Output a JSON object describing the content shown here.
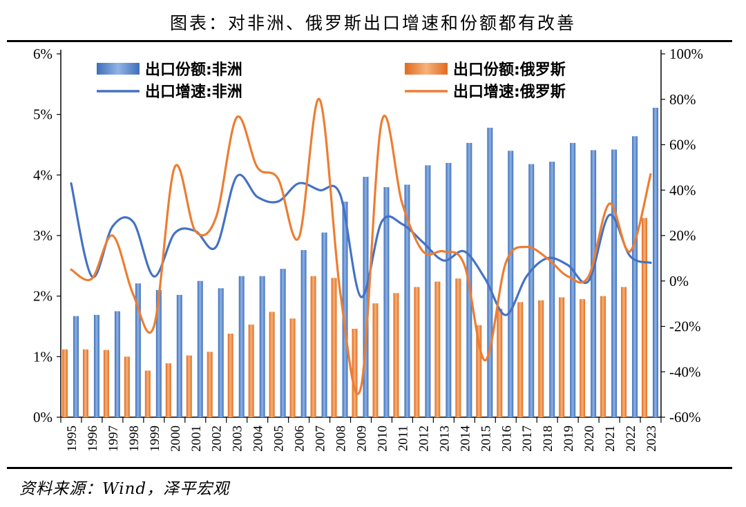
{
  "header": {
    "title": "图表：对非洲、俄罗斯出口增速和份额都有改善"
  },
  "footer": {
    "source": "资料来源：Wind，泽平宏观"
  },
  "colors": {
    "blue": "#4472c4",
    "orange": "#ed7d31",
    "axis": "#000000"
  },
  "chart_data": {
    "type": "bar",
    "categories": [
      "1995",
      "1996",
      "1997",
      "1998",
      "1999",
      "2000",
      "2001",
      "2002",
      "2003",
      "2004",
      "2005",
      "2006",
      "2007",
      "2008",
      "2009",
      "2010",
      "2011",
      "2012",
      "2013",
      "2014",
      "2015",
      "2016",
      "2017",
      "2018",
      "2019",
      "2020",
      "2021",
      "2022",
      "2023"
    ],
    "left_axis": {
      "ylim": [
        0,
        6
      ],
      "ticks": [
        "0%",
        "1%",
        "2%",
        "3%",
        "4%",
        "5%",
        "6%"
      ]
    },
    "right_axis": {
      "ylim": [
        -60,
        100
      ],
      "ticks": [
        "-60%",
        "-40%",
        "-20%",
        "0%",
        "20%",
        "40%",
        "60%",
        "80%",
        "100%"
      ]
    },
    "legend": {
      "share_africa": "出口份额:非洲",
      "share_russia": "出口份额:俄罗斯",
      "growth_africa": "出口增速:非洲",
      "growth_russia": "出口增速:俄罗斯"
    },
    "series": [
      {
        "name": "出口份额:非洲",
        "type": "bar",
        "axis": "left",
        "color": "#4472c4",
        "values": [
          1.67,
          1.69,
          1.75,
          2.21,
          2.1,
          2.02,
          2.25,
          2.13,
          2.33,
          2.33,
          2.45,
          2.76,
          3.05,
          3.56,
          3.97,
          3.8,
          3.84,
          4.16,
          4.2,
          4.53,
          4.78,
          4.4,
          4.18,
          4.22,
          4.53,
          4.41,
          4.42,
          4.64,
          5.11
        ]
      },
      {
        "name": "出口份额:俄罗斯",
        "type": "bar",
        "axis": "left",
        "color": "#ed7d31",
        "values": [
          1.12,
          1.12,
          1.11,
          1.0,
          0.77,
          0.89,
          1.02,
          1.08,
          1.38,
          1.53,
          1.74,
          1.63,
          2.33,
          2.3,
          1.46,
          1.88,
          2.05,
          2.15,
          2.24,
          2.29,
          1.52,
          1.79,
          1.9,
          1.93,
          1.98,
          1.95,
          2.0,
          2.15,
          3.29
        ]
      },
      {
        "name": "出口增速:非洲",
        "type": "line",
        "axis": "right",
        "color": "#4472c4",
        "values": [
          43,
          2,
          24,
          26,
          2,
          21,
          22,
          15,
          46,
          37,
          35,
          43,
          40,
          38,
          -7,
          26,
          25,
          17,
          9,
          13,
          1,
          -15,
          2,
          10,
          7,
          0,
          29,
          11,
          8
        ]
      },
      {
        "name": "出口增速:俄罗斯",
        "type": "line",
        "axis": "right",
        "color": "#ed7d31",
        "values": [
          5,
          1,
          20,
          -6,
          -20,
          50,
          22,
          28,
          72,
          50,
          45,
          19,
          80,
          -5,
          -47,
          70,
          34,
          13,
          13,
          7,
          -35,
          8,
          15,
          10,
          2,
          2,
          34,
          13,
          47
        ]
      }
    ]
  }
}
